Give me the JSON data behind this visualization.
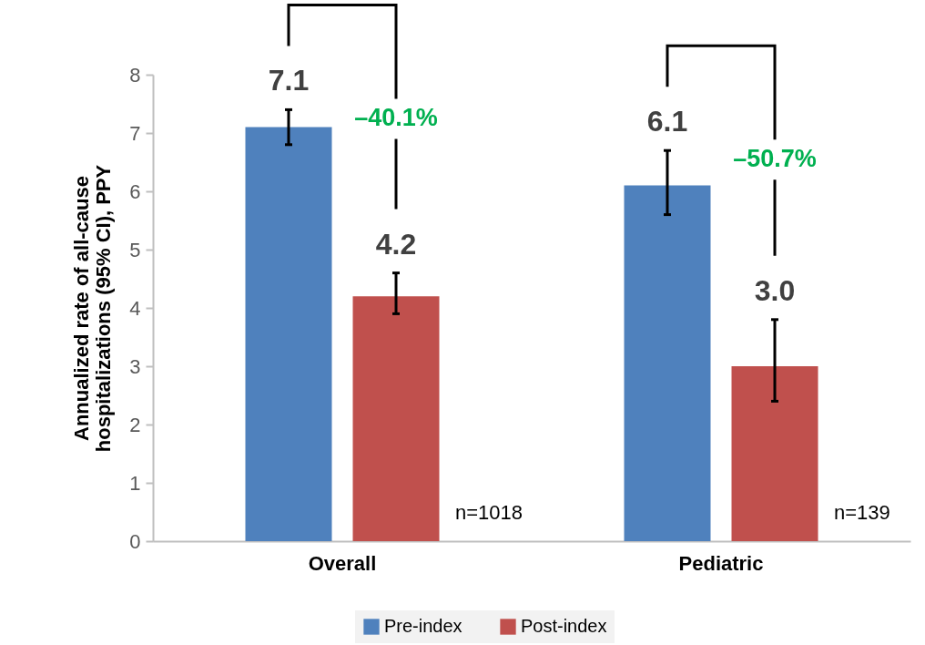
{
  "chart_data": {
    "type": "bar",
    "ylabel": "Annualized rate of all-cause hospitalizations (95% CI), PPY",
    "categories": [
      "Overall",
      "Pediatric"
    ],
    "series": [
      {
        "name": "Pre-index",
        "color": "#4f81bd",
        "values": [
          7.1,
          6.1
        ],
        "value_labels": [
          "7.1",
          "6.1"
        ],
        "errors": [
          [
            6.8,
            7.4
          ],
          [
            5.6,
            6.7
          ]
        ]
      },
      {
        "name": "Post-index",
        "color": "#c0504d",
        "values": [
          4.2,
          3.0
        ],
        "value_labels": [
          "4.2",
          "3.0"
        ],
        "errors": [
          [
            3.9,
            4.6
          ],
          [
            2.4,
            3.8
          ]
        ]
      }
    ],
    "ylim": [
      0,
      8
    ],
    "yticks": [
      0,
      1,
      2,
      3,
      4,
      5,
      6,
      7,
      8
    ],
    "grid": false,
    "legend": "bottom",
    "annotations": [
      "–40.1%",
      "–50.7%",
      "n=1018",
      "n=139"
    ]
  }
}
